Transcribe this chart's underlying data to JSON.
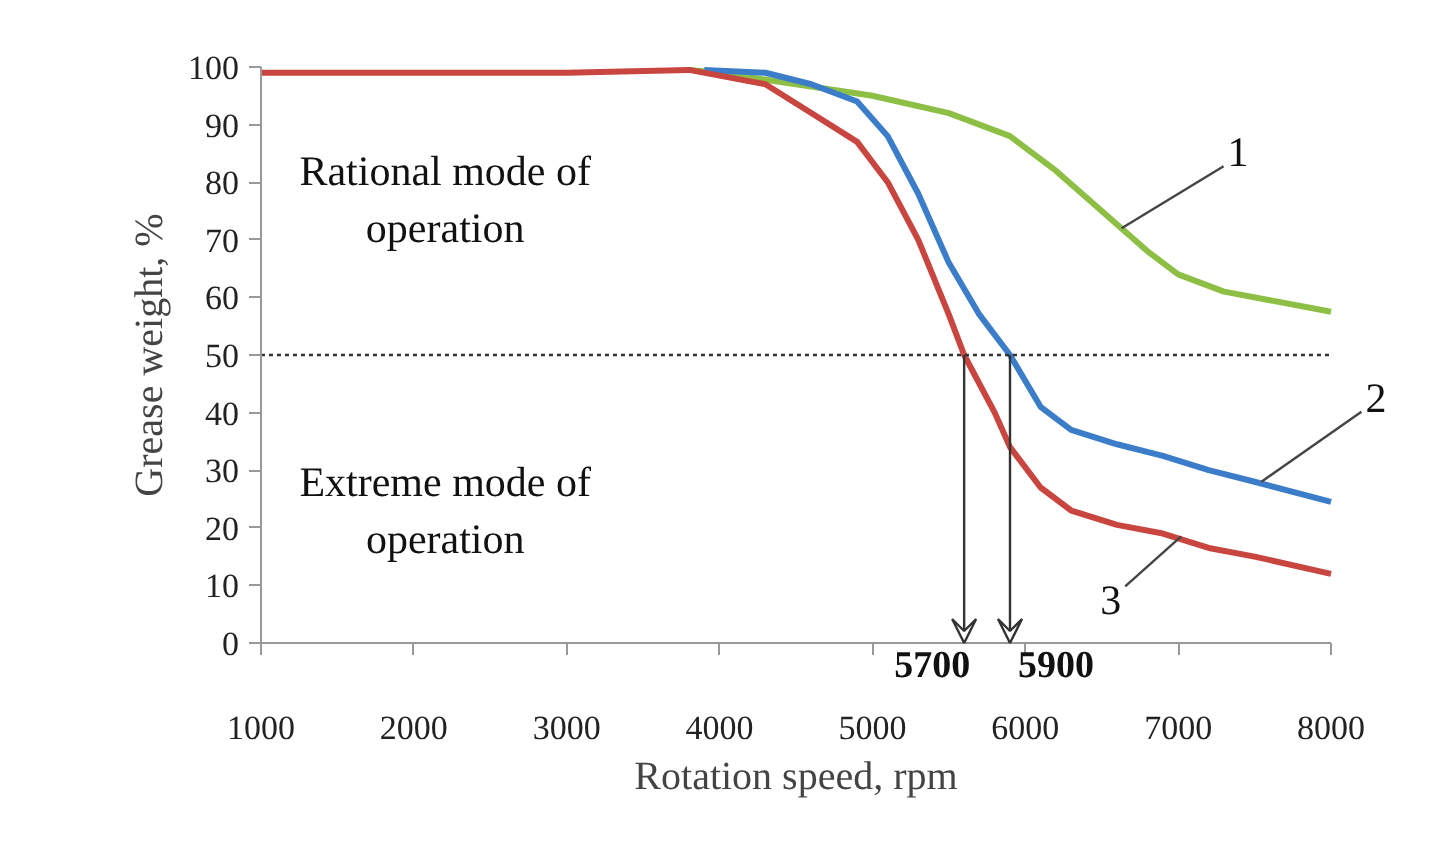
{
  "chart_data": {
    "type": "line",
    "xlabel": "Rotation speed, rpm",
    "ylabel": "Grease weight, %",
    "xlim": [
      1000,
      8000
    ],
    "xticks": [
      1000,
      2000,
      3000,
      4000,
      5000,
      6000,
      7000,
      8000
    ],
    "ylim": [
      0,
      100
    ],
    "yticks": [
      0,
      10,
      20,
      30,
      40,
      50,
      60,
      70,
      80,
      90,
      100
    ],
    "grid": false,
    "marker": "none",
    "line_style": "solid",
    "series": [
      {
        "color": "#8dbf45",
        "x": [
          3800,
          4000,
          4500,
          5000,
          5500,
          5900,
          6200,
          6500,
          6800,
          7000,
          7300,
          7600,
          8000
        ],
        "values": [
          99.5,
          99,
          97,
          95,
          92,
          88,
          82,
          75,
          68,
          64,
          61,
          59.5,
          57.5
        ]
      },
      {
        "color": "#3b7dc8",
        "x": [
          3900,
          4300,
          4600,
          4900,
          5100,
          5300,
          5500,
          5700,
          5900,
          6100,
          6300,
          6600,
          6900,
          7200,
          7500,
          8000
        ],
        "values": [
          99.5,
          99,
          97,
          94,
          88,
          78,
          66,
          57,
          50,
          41,
          37,
          34.5,
          32.5,
          30,
          28,
          24.5
        ]
      },
      {
        "color": "#c9453f",
        "x": [
          1000,
          3000,
          3800,
          4000,
          4300,
          4600,
          4900,
          5100,
          5300,
          5500,
          5600,
          5800,
          5900,
          6100,
          6300,
          6600,
          6900,
          7200,
          7500,
          8000
        ],
        "values": [
          99,
          99,
          99.5,
          98.5,
          97,
          92,
          87,
          80,
          70,
          57,
          50,
          40,
          34,
          27,
          23,
          20.5,
          19,
          16.5,
          15,
          12
        ]
      }
    ],
    "ref_lines": [
      {
        "axis": "y",
        "value": 50,
        "color": "#333333",
        "line_style": "dotted"
      }
    ],
    "annotations": [
      "Rational mode of\noperation",
      "Extreme mode of\noperation",
      {
        "text": "5700",
        "x": 5600,
        "y": 50
      },
      {
        "text": "5900",
        "x": 5900,
        "y": 50
      },
      {
        "text": "1",
        "x": 6630,
        "y": 72
      },
      {
        "text": "2",
        "x": 7545,
        "y": 28
      },
      {
        "text": "3",
        "x": 7020,
        "y": 18.5
      }
    ]
  }
}
